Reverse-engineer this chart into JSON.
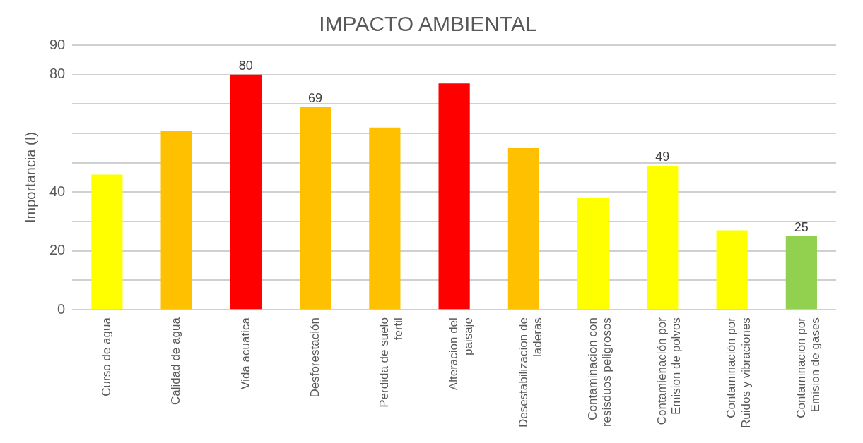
{
  "chart_data": {
    "type": "bar",
    "title": "IMPACTO AMBIENTAL",
    "ylabel": "Importancia (I)",
    "categories": [
      "Curso de agua",
      "Calidad de agua",
      "Vida acuatica",
      "Desforestación",
      "Perdida de suelo fertil",
      "Alteracion del paisaje",
      "Desestabilizacion de laderas",
      "Contaminacion con resisduos peligrosos",
      "Contamienación por Emision de polvos",
      "Contaminación por Ruidos y vibraciones",
      "Contaminacion por Emision de gases"
    ],
    "values": [
      46,
      61,
      80,
      69,
      62,
      77,
      55,
      38,
      49,
      27,
      25
    ],
    "colors": [
      "#ffff00",
      "#ffc000",
      "#ff0000",
      "#ffc000",
      "#ffc000",
      "#ff0000",
      "#ffc000",
      "#ffff00",
      "#ffff00",
      "#ffff00",
      "#92d050"
    ],
    "value_labels": [
      null,
      null,
      "80",
      "69",
      null,
      null,
      null,
      null,
      "49",
      null,
      "25"
    ],
    "ylim": [
      0,
      90
    ],
    "yticks": [
      0,
      {
        "value": 10,
        "label": null
      },
      20,
      {
        "value": 30,
        "label": null
      },
      40,
      {
        "value": 50,
        "label": null
      },
      {
        "value": 60,
        "label": null
      },
      {
        "value": 70,
        "label": null
      },
      80,
      90
    ],
    "grid": "y",
    "legend": false
  }
}
